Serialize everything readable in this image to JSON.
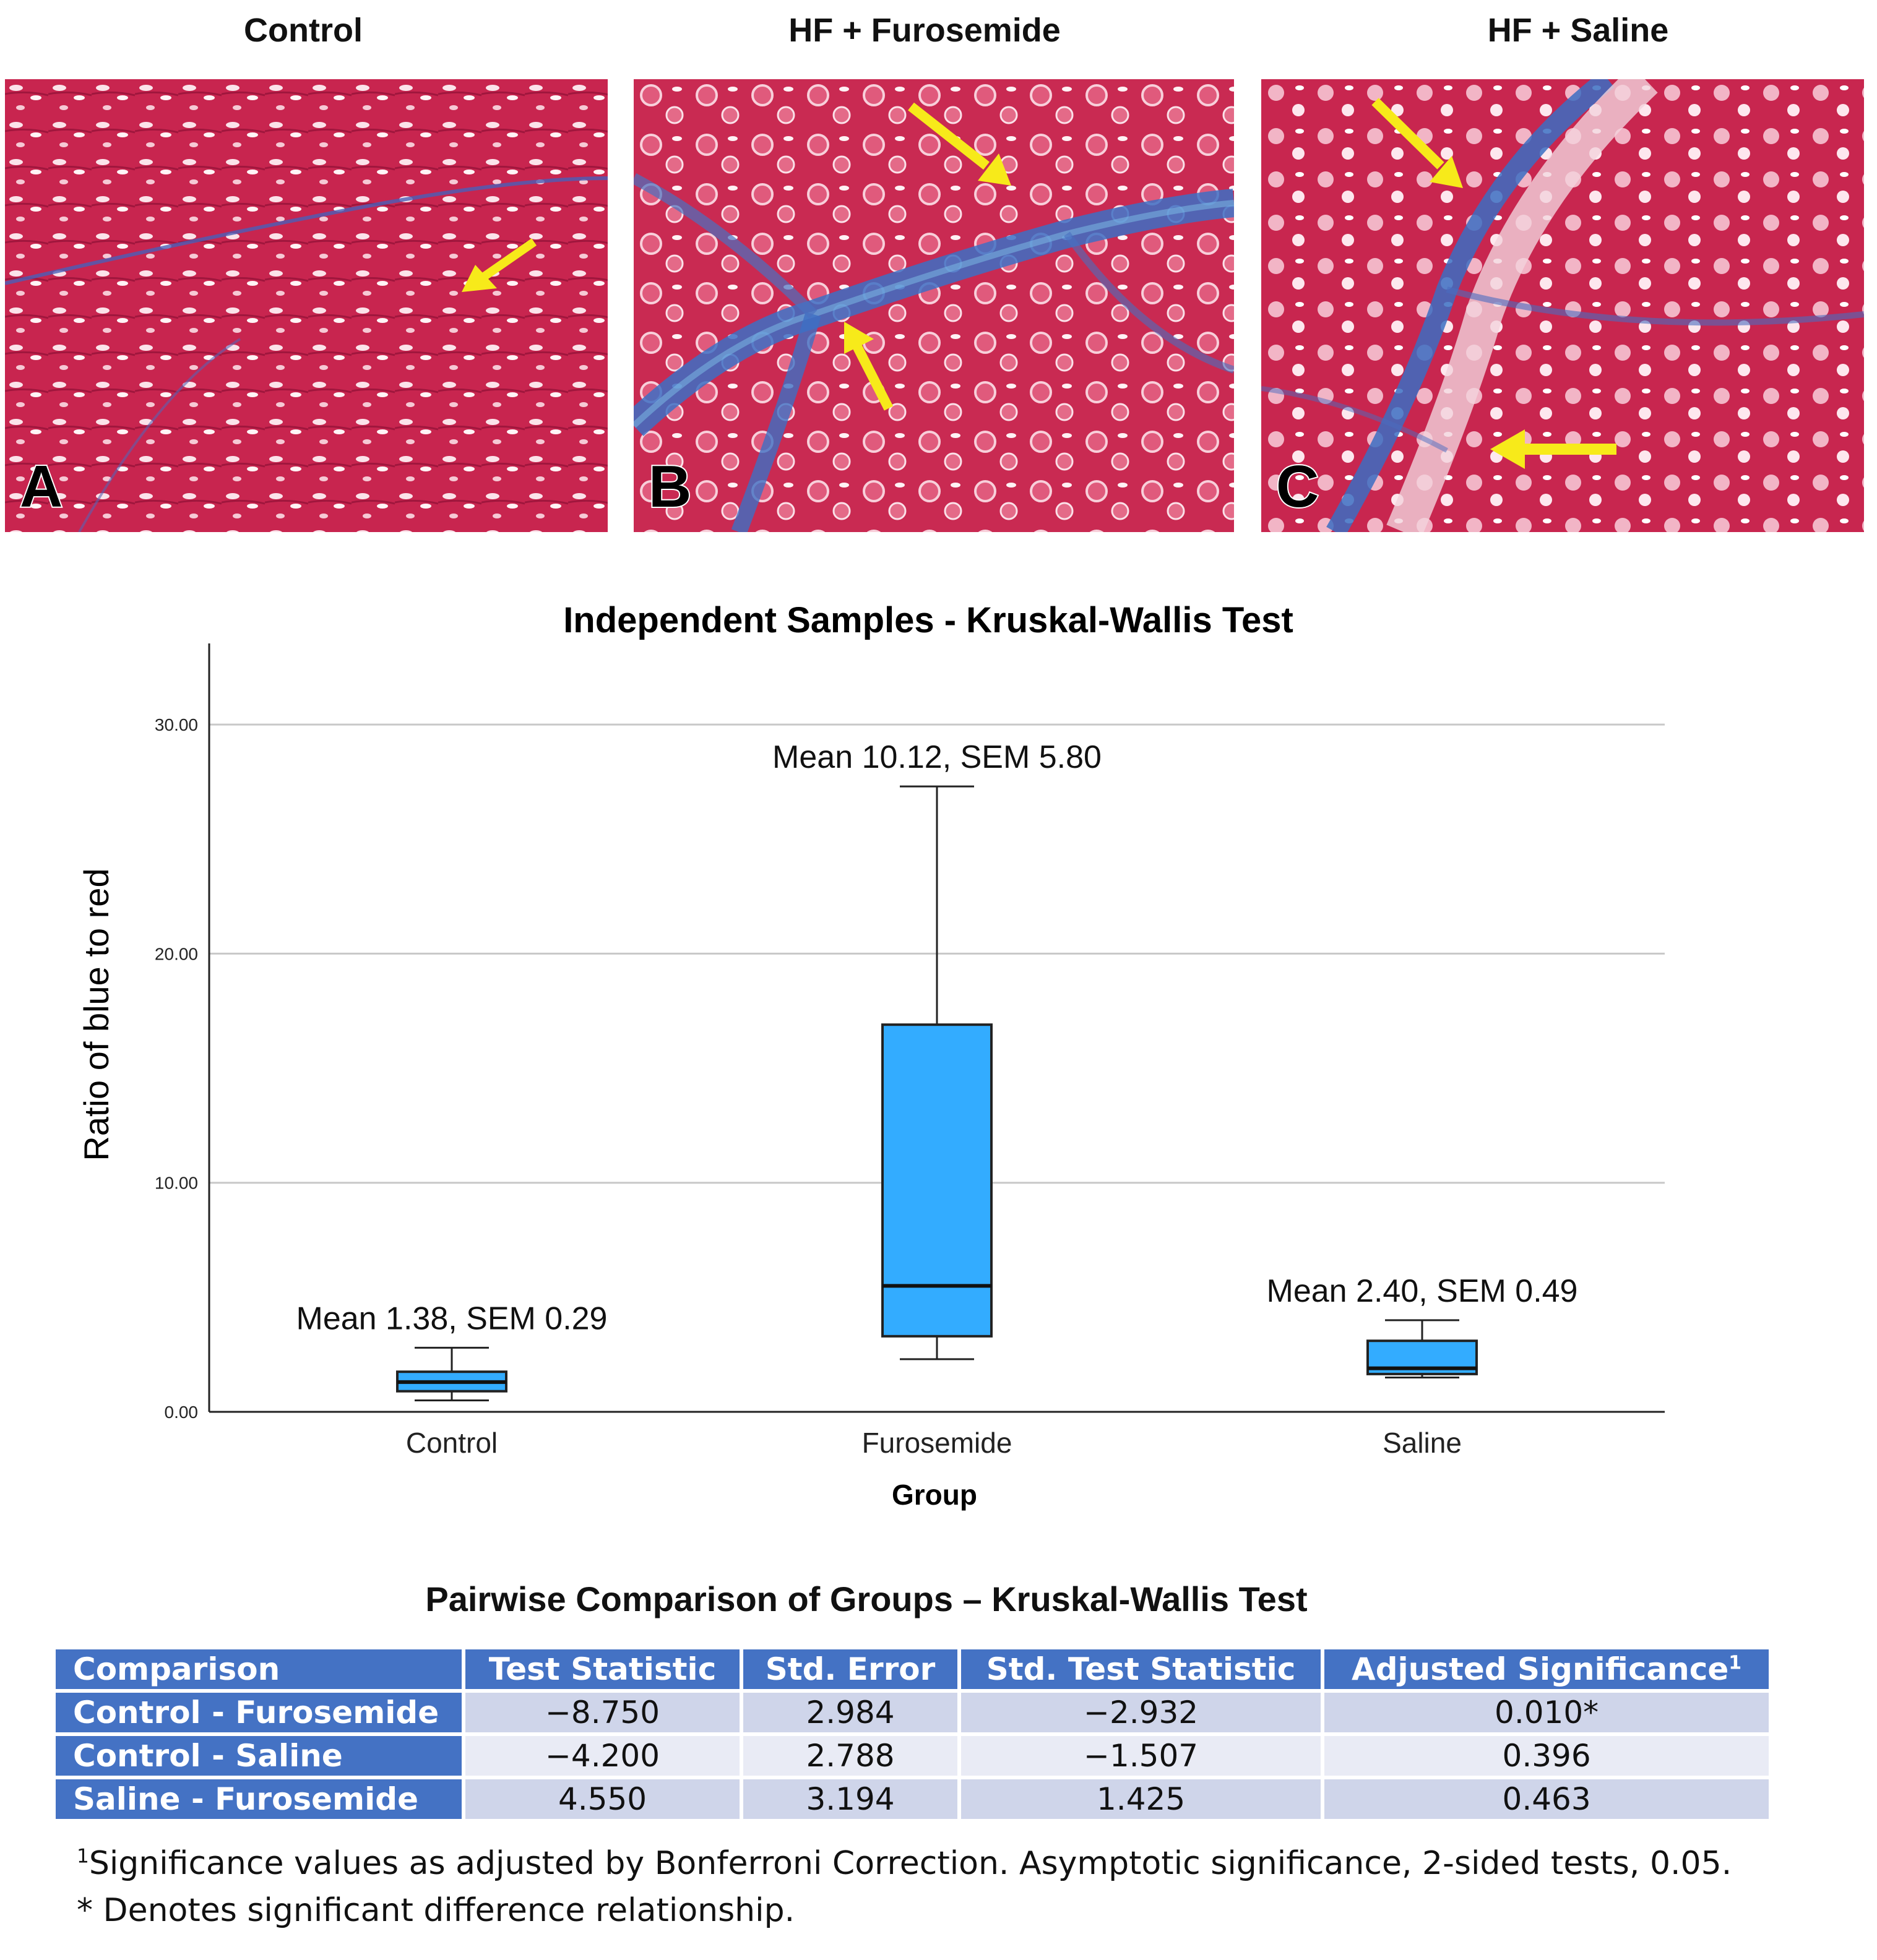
{
  "panels": [
    {
      "title": "Control",
      "letter": "A"
    },
    {
      "title": "HF + Furosemide",
      "letter": "B"
    },
    {
      "title": "HF + Saline",
      "letter": "C"
    }
  ],
  "colors": {
    "tissue_red": "#c8254f",
    "collagen_blue": "#3d6fc4",
    "arrow_yellow": "#f7ea1a",
    "box_fill": "#33acff",
    "table_header": "#4472c4",
    "table_row_light": "#e9ebf5",
    "table_row_dark": "#cfd5ea"
  },
  "chart_data": {
    "type": "boxplot",
    "title": "Independent Samples - Kruskal-Wallis Test",
    "xlabel": "Group",
    "ylabel": "Ratio of blue to red",
    "ylim": [
      0,
      33
    ],
    "yticks": [
      "0.00",
      "10.00",
      "20.00",
      "30.00"
    ],
    "grid": true,
    "categories": [
      "Control",
      "Furosemide",
      "Saline"
    ],
    "boxes": [
      {
        "group": "Control",
        "min": 0.5,
        "q1": 0.9,
        "median": 1.3,
        "q3": 1.75,
        "max": 2.8,
        "annotation": "Mean 1.38, SEM 0.29"
      },
      {
        "group": "Furosemide",
        "min": 2.3,
        "q1": 3.3,
        "median": 5.5,
        "q3": 16.9,
        "max": 27.3,
        "annotation": "Mean 10.12, SEM 5.80"
      },
      {
        "group": "Saline",
        "min": 1.5,
        "q1": 1.65,
        "median": 1.9,
        "q3": 3.1,
        "max": 4.0,
        "annotation": "Mean 2.40, SEM 0.49"
      }
    ]
  },
  "table": {
    "title": "Pairwise Comparison of Groups – Kruskal-Wallis Test",
    "headers": [
      "Comparison",
      "Test Statistic",
      "Std. Error",
      "Std. Test Statistic",
      "Adjusted Significance"
    ],
    "header_sup": "1",
    "rows": [
      [
        "Control - Furosemide",
        "−8.750",
        "2.984",
        "−2.932",
        "0.010*"
      ],
      [
        "Control - Saline",
        "−4.200",
        "2.788",
        "−1.507",
        "0.396"
      ],
      [
        "Saline - Furosemide",
        "4.550",
        "3.194",
        "1.425",
        "0.463"
      ]
    ],
    "footnote_sup": "1",
    "footnote_1": "Significance values as adjusted by Bonferroni Correction.  Asymptotic significance, 2-sided tests, 0.05.",
    "footnote_2": "* Denotes significant difference relationship."
  }
}
